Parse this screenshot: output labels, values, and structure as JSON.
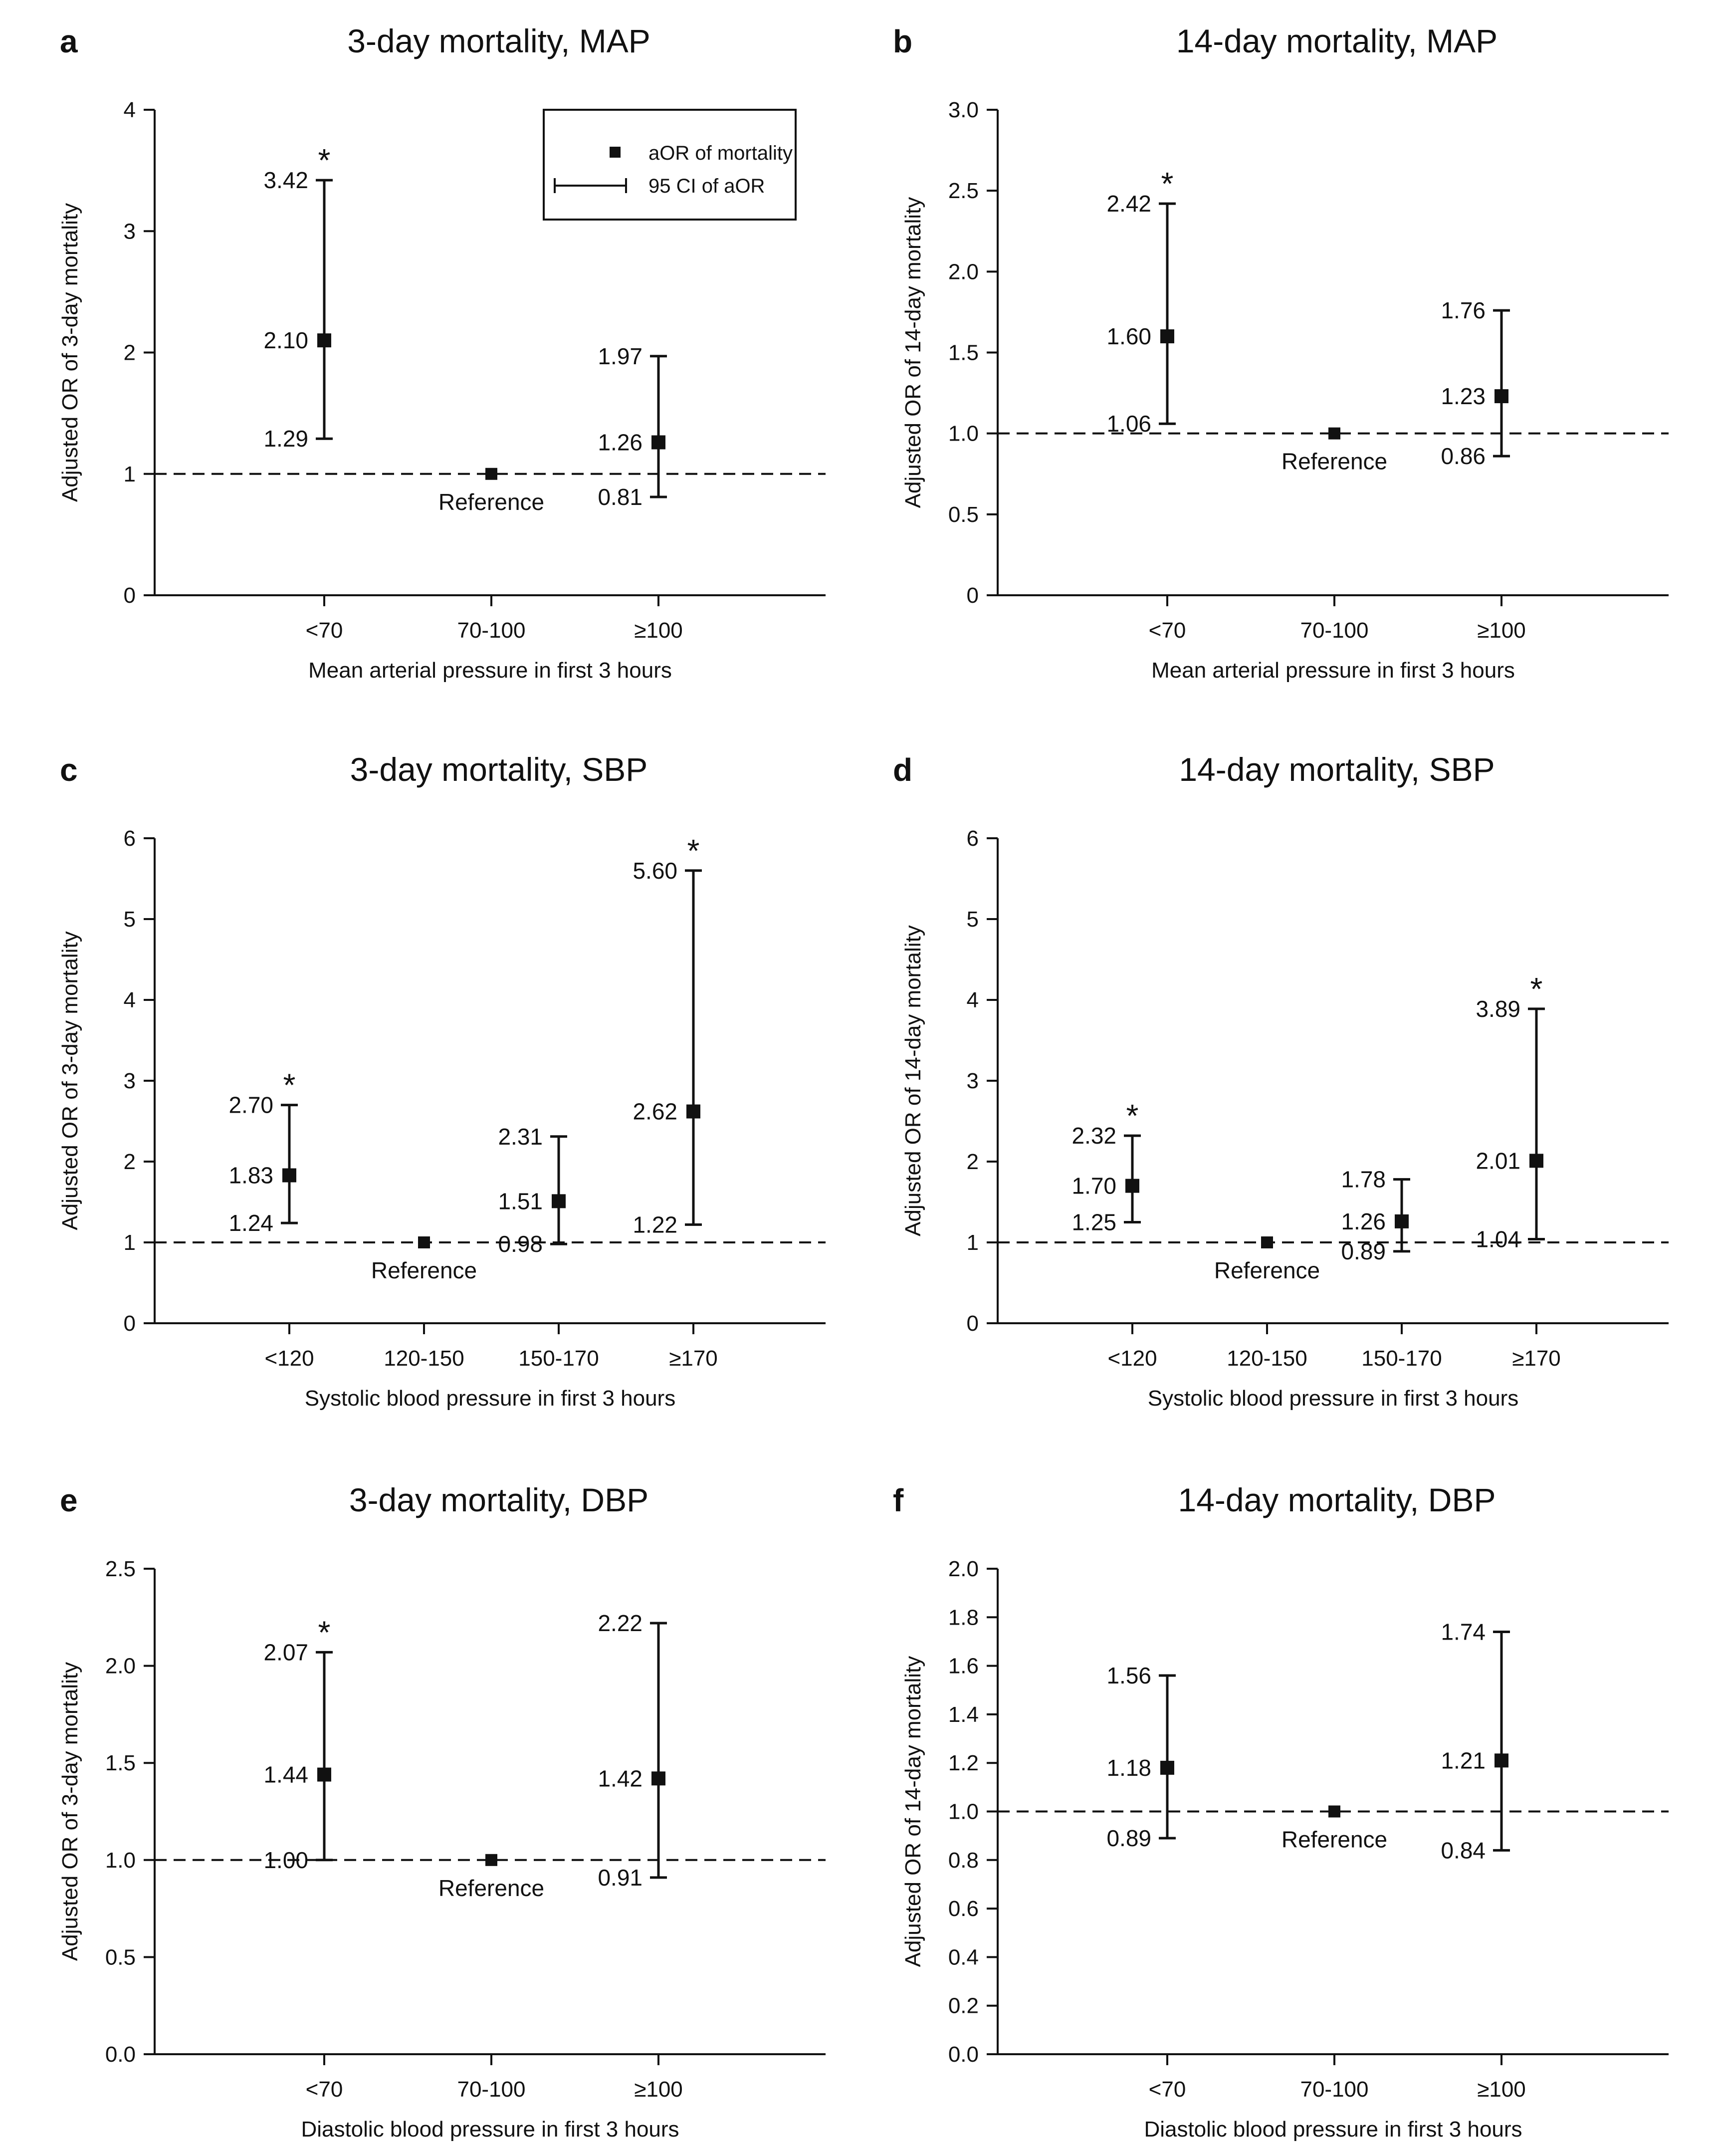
{
  "figure": {
    "legend": {
      "point_label": "aOR of mortality",
      "ci_label": "95 CI of aOR"
    }
  },
  "chart_data": [
    {
      "panel": "a",
      "type": "scatter",
      "title": "3-day mortality, MAP",
      "xlabel": "Mean arterial pressure in first 3 hours",
      "ylabel": "Adjusted OR of 3-day mortality",
      "ylim": [
        0,
        4
      ],
      "yticks": [
        "0",
        "1",
        "2",
        "3",
        "4"
      ],
      "categories": [
        "<70",
        "70-100",
        "≥100"
      ],
      "reference_line": 1,
      "points": [
        {
          "category": "<70",
          "aor": 2.1,
          "lower": 1.29,
          "upper": 3.42,
          "aor_label": "2.10",
          "lower_label": "1.29",
          "upper_label": "3.42",
          "significant": true
        },
        {
          "category": "70-100",
          "aor": 1,
          "reference": true,
          "reference_label": "Reference"
        },
        {
          "category": "≥100",
          "aor": 1.26,
          "lower": 0.81,
          "upper": 1.97,
          "aor_label": "1.26",
          "lower_label": "0.81",
          "upper_label": "1.97",
          "significant": false
        }
      ],
      "legend": true
    },
    {
      "panel": "b",
      "type": "scatter",
      "title": "14-day mortality, MAP",
      "xlabel": "Mean arterial pressure in first 3 hours",
      "ylabel": "Adjusted OR of 14-day mortality",
      "ylim": [
        0,
        3
      ],
      "yticks": [
        "0",
        "0.5",
        "1.0",
        "1.5",
        "2.0",
        "2.5",
        "3.0"
      ],
      "categories": [
        "<70",
        "70-100",
        "≥100"
      ],
      "reference_line": 1,
      "points": [
        {
          "category": "<70",
          "aor": 1.6,
          "lower": 1.06,
          "upper": 2.42,
          "aor_label": "1.60",
          "lower_label": "1.06",
          "upper_label": "2.42",
          "significant": true
        },
        {
          "category": "70-100",
          "aor": 1,
          "reference": true,
          "reference_label": "Reference"
        },
        {
          "category": "≥100",
          "aor": 1.23,
          "lower": 0.86,
          "upper": 1.76,
          "aor_label": "1.23",
          "lower_label": "0.86",
          "upper_label": "1.76",
          "significant": false
        }
      ]
    },
    {
      "panel": "c",
      "type": "scatter",
      "title": "3-day mortality, SBP",
      "xlabel": "Systolic blood pressure in first 3 hours",
      "ylabel": "Adjusted OR of 3-day mortality",
      "ylim": [
        0,
        6
      ],
      "yticks": [
        "0",
        "1",
        "2",
        "3",
        "4",
        "5",
        "6"
      ],
      "categories": [
        "<120",
        "120-150",
        "150-170",
        "≥170"
      ],
      "reference_line": 1,
      "points": [
        {
          "category": "<120",
          "aor": 1.83,
          "lower": 1.24,
          "upper": 2.7,
          "aor_label": "1.83",
          "lower_label": "1.24",
          "upper_label": "2.70",
          "significant": true
        },
        {
          "category": "120-150",
          "aor": 1,
          "reference": true,
          "reference_label": "Reference"
        },
        {
          "category": "150-170",
          "aor": 1.51,
          "lower": 0.98,
          "upper": 2.31,
          "aor_label": "1.51",
          "lower_label": "0.98",
          "upper_label": "2.31",
          "significant": false
        },
        {
          "category": "≥170",
          "aor": 2.62,
          "lower": 1.22,
          "upper": 5.6,
          "aor_label": "2.62",
          "lower_label": "1.22",
          "upper_label": "5.60",
          "significant": true
        }
      ]
    },
    {
      "panel": "d",
      "type": "scatter",
      "title": "14-day mortality, SBP",
      "xlabel": "Systolic blood pressure in first 3 hours",
      "ylabel": "Adjusted OR of 14-day mortality",
      "ylim": [
        0,
        6
      ],
      "yticks": [
        "0",
        "1",
        "2",
        "3",
        "4",
        "5",
        "6"
      ],
      "categories": [
        "<120",
        "120-150",
        "150-170",
        "≥170"
      ],
      "reference_line": 1,
      "points": [
        {
          "category": "<120",
          "aor": 1.7,
          "lower": 1.25,
          "upper": 2.32,
          "aor_label": "1.70",
          "lower_label": "1.25",
          "upper_label": "2.32",
          "significant": true
        },
        {
          "category": "120-150",
          "aor": 1,
          "reference": true,
          "reference_label": "Reference"
        },
        {
          "category": "150-170",
          "aor": 1.26,
          "lower": 0.89,
          "upper": 1.78,
          "aor_label": "1.26",
          "lower_label": "0.89",
          "upper_label": "1.78",
          "significant": false
        },
        {
          "category": "≥170",
          "aor": 2.01,
          "lower": 1.04,
          "upper": 3.89,
          "aor_label": "2.01",
          "lower_label": "1.04",
          "upper_label": "3.89",
          "significant": true
        }
      ]
    },
    {
      "panel": "e",
      "type": "scatter",
      "title": "3-day mortality, DBP",
      "xlabel": "Diastolic blood pressure in first 3 hours",
      "ylabel": "Adjusted OR of 3-day mortality",
      "ylim": [
        0,
        2.5
      ],
      "yticks": [
        "0.0",
        "0.5",
        "1.0",
        "1.5",
        "2.0",
        "2.5"
      ],
      "categories": [
        "<70",
        "70-100",
        "≥100"
      ],
      "reference_line": 1,
      "points": [
        {
          "category": "<70",
          "aor": 1.44,
          "lower": 1.0,
          "upper": 2.07,
          "aor_label": "1.44",
          "lower_label": "1.00",
          "upper_label": "2.07",
          "significant": true
        },
        {
          "category": "70-100",
          "aor": 1,
          "reference": true,
          "reference_label": "Reference"
        },
        {
          "category": "≥100",
          "aor": 1.42,
          "lower": 0.91,
          "upper": 2.22,
          "aor_label": "1.42",
          "lower_label": "0.91",
          "upper_label": "2.22",
          "significant": false
        }
      ]
    },
    {
      "panel": "f",
      "type": "scatter",
      "title": "14-day mortality, DBP",
      "xlabel": "Diastolic blood pressure in first 3 hours",
      "ylabel": "Adjusted OR of 14-day mortality",
      "ylim": [
        0,
        2
      ],
      "yticks": [
        "0.0",
        "0.2",
        "0.4",
        "0.6",
        "0.8",
        "1.0",
        "1.2",
        "1.4",
        "1.6",
        "1.8",
        "2.0"
      ],
      "categories": [
        "<70",
        "70-100",
        "≥100"
      ],
      "reference_line": 1,
      "points": [
        {
          "category": "<70",
          "aor": 1.18,
          "lower": 0.89,
          "upper": 1.56,
          "aor_label": "1.18",
          "lower_label": "0.89",
          "upper_label": "1.56",
          "significant": false
        },
        {
          "category": "70-100",
          "aor": 1,
          "reference": true,
          "reference_label": "Reference"
        },
        {
          "category": "≥100",
          "aor": 1.21,
          "lower": 0.84,
          "upper": 1.74,
          "aor_label": "1.21",
          "lower_label": "0.84",
          "upper_label": "1.74",
          "significant": false
        }
      ]
    }
  ]
}
